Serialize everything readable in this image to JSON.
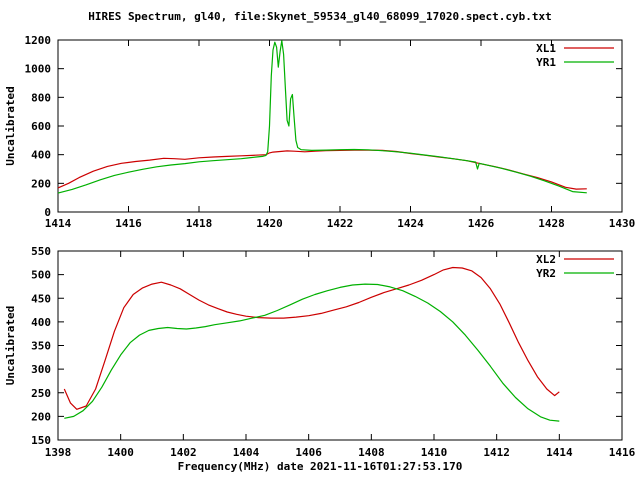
{
  "title": "HIRES Spectrum, gl40, file:Skynet_59534_gl40_68099_17020.spect.cyb.txt",
  "xlabel": "Frequency(MHz) date 2021-11-16T01:27:53.170",
  "colors": {
    "background": "#ffffff",
    "axis": "#000000",
    "red": "#cc0000",
    "green": "#00b000"
  },
  "chart_data": [
    {
      "type": "line",
      "ylabel": "Uncalibrated",
      "xlim": [
        1414,
        1430
      ],
      "ylim": [
        0,
        1200
      ],
      "x_ticks": [
        1414,
        1416,
        1418,
        1420,
        1422,
        1424,
        1426,
        1428,
        1430
      ],
      "y_ticks": [
        0,
        200,
        400,
        600,
        800,
        1000,
        1200
      ],
      "grid": false,
      "legend_position": "top-right",
      "series": [
        {
          "name": "XL1",
          "color": "#cc0000",
          "points": [
            [
              1414.0,
              168
            ],
            [
              1414.3,
              200
            ],
            [
              1414.6,
              240
            ],
            [
              1415.0,
              285
            ],
            [
              1415.4,
              318
            ],
            [
              1415.8,
              340
            ],
            [
              1416.2,
              352
            ],
            [
              1416.6,
              362
            ],
            [
              1417.0,
              375
            ],
            [
              1417.3,
              372
            ],
            [
              1417.6,
              368
            ],
            [
              1418.0,
              378
            ],
            [
              1418.4,
              384
            ],
            [
              1418.8,
              388
            ],
            [
              1419.2,
              392
            ],
            [
              1419.6,
              396
            ],
            [
              1419.9,
              400
            ],
            [
              1420.0,
              412
            ],
            [
              1420.1,
              418
            ],
            [
              1420.3,
              422
            ],
            [
              1420.5,
              426
            ],
            [
              1420.7,
              424
            ],
            [
              1421.0,
              420
            ],
            [
              1421.3,
              424
            ],
            [
              1421.6,
              428
            ],
            [
              1422.0,
              430
            ],
            [
              1422.4,
              432
            ],
            [
              1422.8,
              432
            ],
            [
              1423.2,
              430
            ],
            [
              1423.6,
              422
            ],
            [
              1424.0,
              408
            ],
            [
              1424.4,
              396
            ],
            [
              1424.8,
              384
            ],
            [
              1425.2,
              372
            ],
            [
              1425.6,
              358
            ],
            [
              1426.0,
              336
            ],
            [
              1426.4,
              316
            ],
            [
              1426.8,
              292
            ],
            [
              1427.2,
              266
            ],
            [
              1427.6,
              240
            ],
            [
              1428.0,
              210
            ],
            [
              1428.4,
              172
            ],
            [
              1428.7,
              160
            ],
            [
              1429.0,
              162
            ]
          ]
        },
        {
          "name": "YR1",
          "color": "#00b000",
          "points": [
            [
              1414.0,
              132
            ],
            [
              1414.4,
              158
            ],
            [
              1414.8,
              190
            ],
            [
              1415.2,
              225
            ],
            [
              1415.6,
              255
            ],
            [
              1416.0,
              278
            ],
            [
              1416.4,
              298
            ],
            [
              1416.8,
              315
            ],
            [
              1417.2,
              328
            ],
            [
              1417.6,
              338
            ],
            [
              1418.0,
              350
            ],
            [
              1418.4,
              358
            ],
            [
              1418.8,
              365
            ],
            [
              1419.2,
              372
            ],
            [
              1419.5,
              380
            ],
            [
              1419.8,
              388
            ],
            [
              1419.9,
              395
            ],
            [
              1419.95,
              420
            ],
            [
              1420.0,
              600
            ],
            [
              1420.05,
              950
            ],
            [
              1420.1,
              1130
            ],
            [
              1420.15,
              1185
            ],
            [
              1420.2,
              1150
            ],
            [
              1420.25,
              1010
            ],
            [
              1420.3,
              1120
            ],
            [
              1420.35,
              1195
            ],
            [
              1420.4,
              1100
            ],
            [
              1420.45,
              860
            ],
            [
              1420.5,
              640
            ],
            [
              1420.55,
              600
            ],
            [
              1420.6,
              790
            ],
            [
              1420.65,
              820
            ],
            [
              1420.7,
              650
            ],
            [
              1420.75,
              500
            ],
            [
              1420.8,
              450
            ],
            [
              1420.9,
              435
            ],
            [
              1421.2,
              430
            ],
            [
              1421.6,
              432
            ],
            [
              1422.0,
              435
            ],
            [
              1422.4,
              436
            ],
            [
              1422.8,
              434
            ],
            [
              1423.2,
              428
            ],
            [
              1423.6,
              420
            ],
            [
              1424.0,
              410
            ],
            [
              1424.4,
              398
            ],
            [
              1424.8,
              386
            ],
            [
              1425.2,
              372
            ],
            [
              1425.6,
              358
            ],
            [
              1425.85,
              348
            ],
            [
              1425.9,
              300
            ],
            [
              1425.95,
              340
            ],
            [
              1426.2,
              326
            ],
            [
              1426.6,
              304
            ],
            [
              1427.0,
              278
            ],
            [
              1427.4,
              250
            ],
            [
              1427.8,
              218
            ],
            [
              1428.2,
              182
            ],
            [
              1428.6,
              142
            ],
            [
              1429.0,
              134
            ]
          ]
        }
      ]
    },
    {
      "type": "line",
      "ylabel": "Uncalibrated",
      "xlim": [
        1398,
        1416
      ],
      "ylim": [
        150,
        550
      ],
      "x_ticks": [
        1398,
        1400,
        1402,
        1404,
        1406,
        1408,
        1410,
        1412,
        1414,
        1416
      ],
      "y_ticks": [
        150,
        200,
        250,
        300,
        350,
        400,
        450,
        500,
        550
      ],
      "grid": false,
      "legend_position": "top-right",
      "series": [
        {
          "name": "XL2",
          "color": "#cc0000",
          "points": [
            [
              1398.2,
              258
            ],
            [
              1398.4,
              228
            ],
            [
              1398.6,
              215
            ],
            [
              1398.9,
              222
            ],
            [
              1399.2,
              258
            ],
            [
              1399.5,
              318
            ],
            [
              1399.8,
              380
            ],
            [
              1400.1,
              430
            ],
            [
              1400.4,
              458
            ],
            [
              1400.7,
              472
            ],
            [
              1401.0,
              480
            ],
            [
              1401.3,
              484
            ],
            [
              1401.6,
              478
            ],
            [
              1401.9,
              470
            ],
            [
              1402.2,
              458
            ],
            [
              1402.5,
              446
            ],
            [
              1402.8,
              436
            ],
            [
              1403.1,
              428
            ],
            [
              1403.4,
              421
            ],
            [
              1403.7,
              416
            ],
            [
              1404.0,
              412
            ],
            [
              1404.4,
              409
            ],
            [
              1404.8,
              408
            ],
            [
              1405.2,
              408
            ],
            [
              1405.6,
              410
            ],
            [
              1406.0,
              413
            ],
            [
              1406.4,
              418
            ],
            [
              1406.8,
              425
            ],
            [
              1407.2,
              432
            ],
            [
              1407.6,
              441
            ],
            [
              1408.0,
              452
            ],
            [
              1408.4,
              462
            ],
            [
              1408.8,
              470
            ],
            [
              1409.2,
              478
            ],
            [
              1409.6,
              488
            ],
            [
              1410.0,
              500
            ],
            [
              1410.3,
              510
            ],
            [
              1410.6,
              515
            ],
            [
              1410.9,
              514
            ],
            [
              1411.2,
              508
            ],
            [
              1411.5,
              494
            ],
            [
              1411.8,
              470
            ],
            [
              1412.1,
              438
            ],
            [
              1412.4,
              398
            ],
            [
              1412.7,
              356
            ],
            [
              1413.0,
              318
            ],
            [
              1413.3,
              284
            ],
            [
              1413.6,
              258
            ],
            [
              1413.85,
              244
            ],
            [
              1414.0,
              252
            ]
          ]
        },
        {
          "name": "YR2",
          "color": "#00b000",
          "points": [
            [
              1398.2,
              196
            ],
            [
              1398.5,
              200
            ],
            [
              1398.8,
              212
            ],
            [
              1399.1,
              232
            ],
            [
              1399.4,
              262
            ],
            [
              1399.7,
              298
            ],
            [
              1400.0,
              330
            ],
            [
              1400.3,
              356
            ],
            [
              1400.6,
              372
            ],
            [
              1400.9,
              382
            ],
            [
              1401.2,
              386
            ],
            [
              1401.5,
              388
            ],
            [
              1401.8,
              386
            ],
            [
              1402.1,
              385
            ],
            [
              1402.4,
              387
            ],
            [
              1402.7,
              390
            ],
            [
              1403.0,
              394
            ],
            [
              1403.4,
              398
            ],
            [
              1403.8,
              402
            ],
            [
              1404.2,
              408
            ],
            [
              1404.6,
              414
            ],
            [
              1405.0,
              424
            ],
            [
              1405.4,
              436
            ],
            [
              1405.8,
              448
            ],
            [
              1406.2,
              458
            ],
            [
              1406.6,
              466
            ],
            [
              1407.0,
              473
            ],
            [
              1407.4,
              478
            ],
            [
              1407.8,
              480
            ],
            [
              1408.2,
              479
            ],
            [
              1408.6,
              474
            ],
            [
              1409.0,
              466
            ],
            [
              1409.4,
              454
            ],
            [
              1409.8,
              440
            ],
            [
              1410.2,
              422
            ],
            [
              1410.6,
              400
            ],
            [
              1411.0,
              372
            ],
            [
              1411.4,
              340
            ],
            [
              1411.8,
              306
            ],
            [
              1412.2,
              270
            ],
            [
              1412.6,
              240
            ],
            [
              1413.0,
              216
            ],
            [
              1413.4,
              199
            ],
            [
              1413.7,
              192
            ],
            [
              1414.0,
              190
            ]
          ]
        }
      ]
    }
  ]
}
